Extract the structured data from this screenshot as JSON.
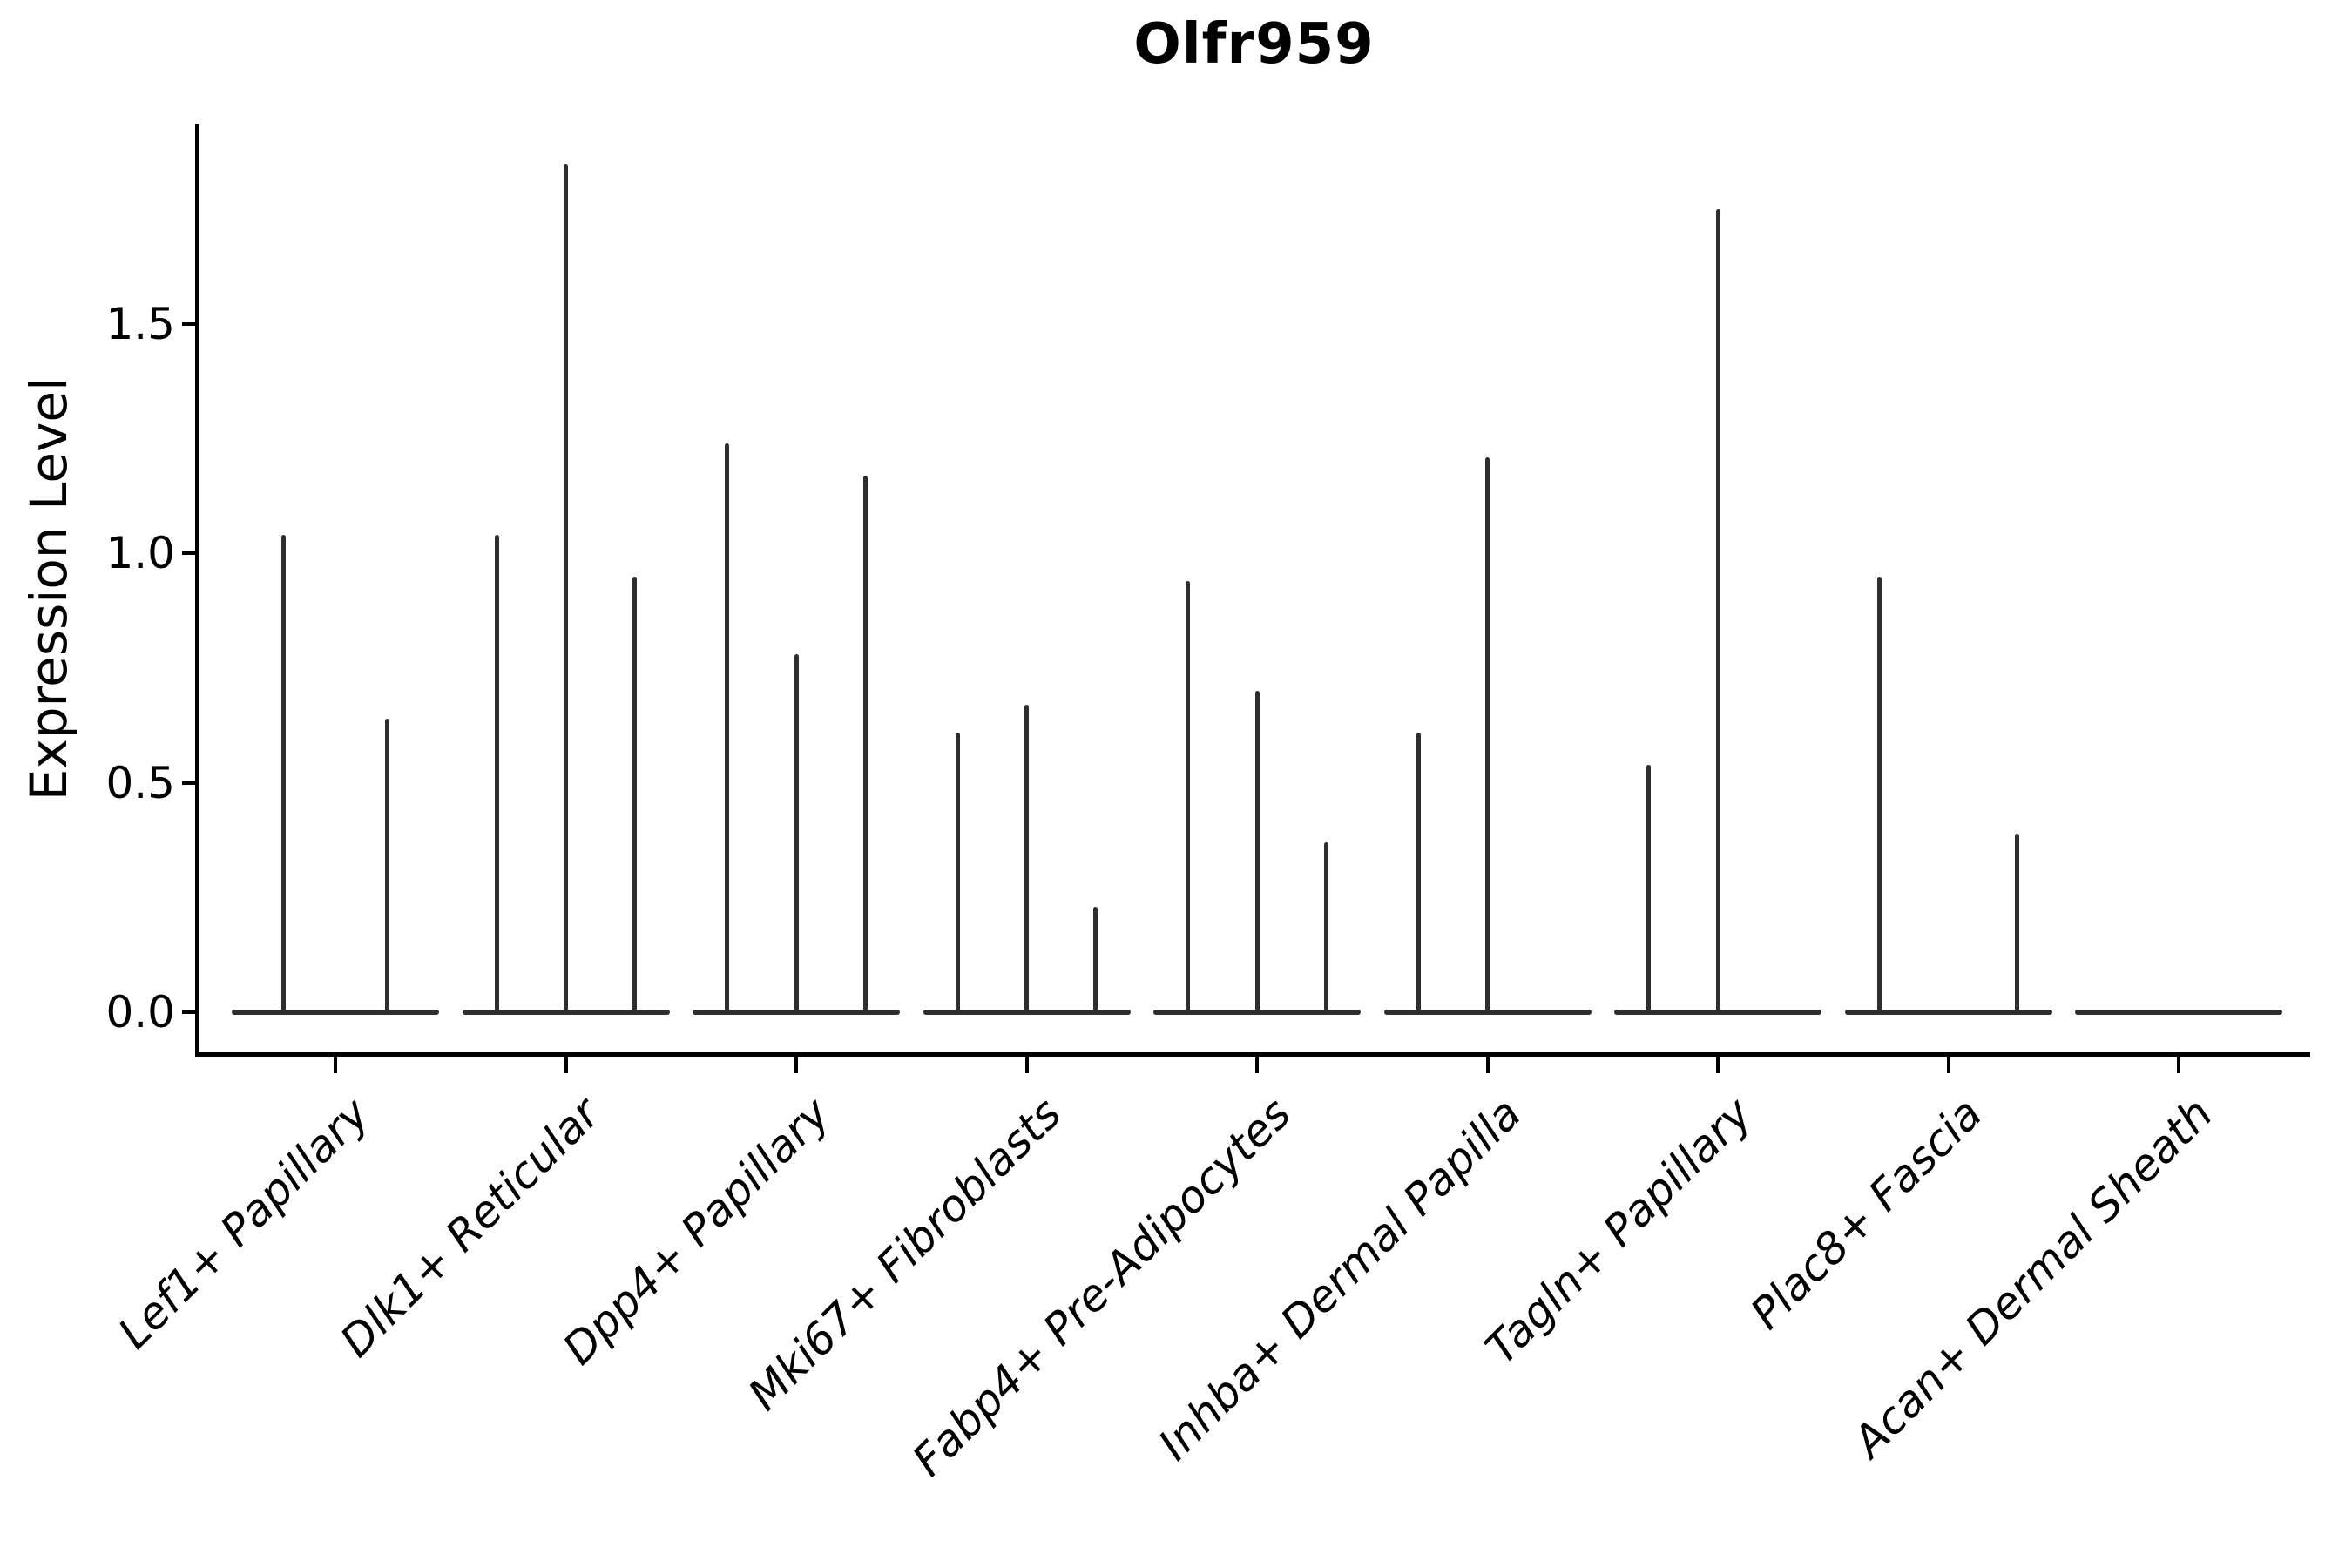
{
  "title": "Olfr959",
  "y_axis_label": "Expression Level",
  "chart_data": {
    "type": "violin",
    "title": "Olfr959",
    "xlabel": "",
    "ylabel": "Expression Level",
    "ylim": [
      -0.09,
      1.94
    ],
    "yticks": [
      0.0,
      0.5,
      1.0,
      1.5
    ],
    "ytick_labels": [
      "0.0",
      "0.5",
      "1.0",
      "1.5"
    ],
    "grid": false,
    "legend": "none",
    "categories": [
      "Lef1+ Papillary",
      "Dlk1+ Reticular",
      "Dpp4+ Papillary",
      "Mki67+ Fibroblasts",
      "Fabp4+ Pre-Adipocytes",
      "Inhba+ Dermal Papilla",
      "Tagln+ Papillary",
      "Plac8+ Fascia",
      "Acan+ Dermal Sheath"
    ],
    "groups": [
      {
        "label": "Lef1+ Papillary",
        "violin_max_values": [
          1.04,
          0.64
        ]
      },
      {
        "label": "Dlk1+ Reticular",
        "violin_max_values": [
          1.04,
          1.85,
          0.95
        ]
      },
      {
        "label": "Dpp4+ Papillary",
        "violin_max_values": [
          1.24,
          0.78,
          1.17
        ]
      },
      {
        "label": "Mki67+ Fibroblasts",
        "violin_max_values": [
          0.61,
          0.67,
          0.23
        ]
      },
      {
        "label": "Fabp4+ Pre-Adipocytes",
        "violin_max_values": [
          0.94,
          0.7,
          0.37
        ]
      },
      {
        "label": "Inhba+ Dermal Papilla",
        "violin_max_values": [
          0.61,
          1.21,
          0.0
        ]
      },
      {
        "label": "Tagln+ Papillary",
        "violin_max_values": [
          0.54,
          1.75,
          0.0
        ]
      },
      {
        "label": "Plac8+ Fascia",
        "violin_max_values": [
          0.95,
          0.0,
          0.39
        ]
      },
      {
        "label": "Acan+ Dermal Sheath",
        "violin_max_values": [
          0.0,
          0.0,
          0.0
        ]
      }
    ],
    "colors": {
      "violin_line": "#2e2e2e",
      "axis": "#000000",
      "background": "#ffffff"
    }
  }
}
